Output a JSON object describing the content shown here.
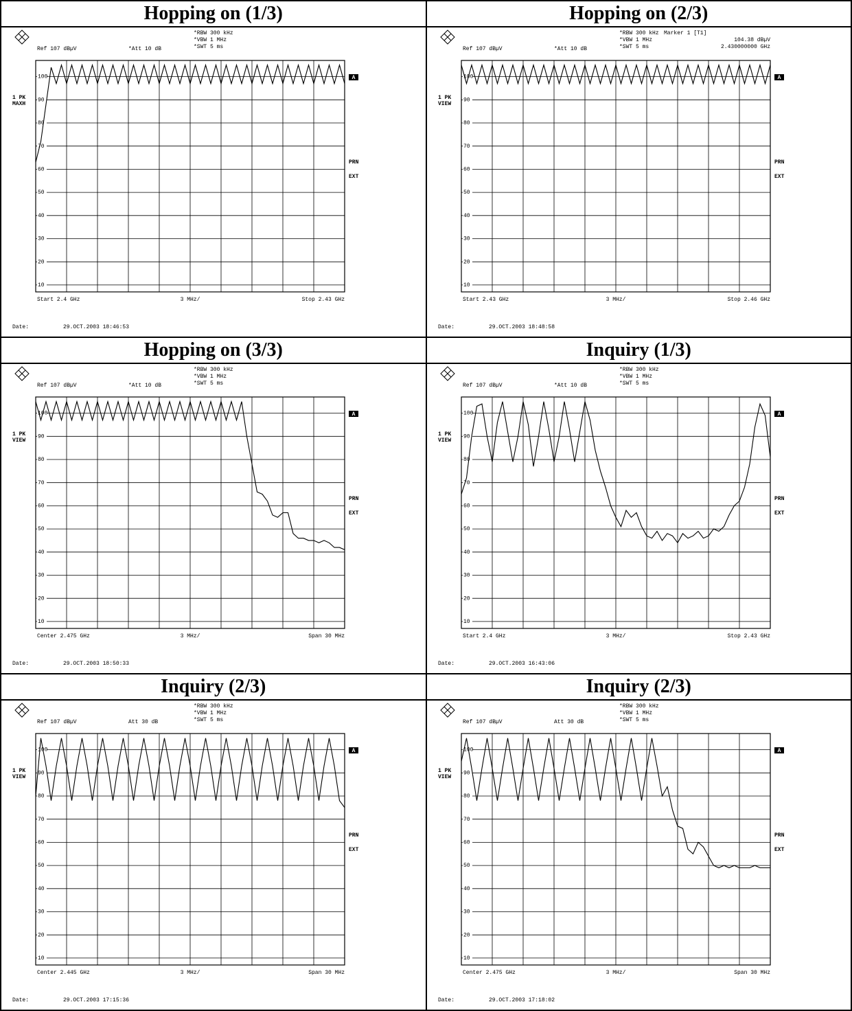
{
  "chart_data": [
    {
      "type": "line",
      "title": "Hopping on (1/3)",
      "rbw": "*RBW 300 kHz",
      "vbw": "*VBW 1 MHz",
      "swt": "*SWT 5 ms",
      "ref": "Ref 107 dBµV",
      "att": "*Att 10 dB",
      "trace_label": [
        "1 PK",
        "MAXH"
      ],
      "side_labels": [
        "A",
        "PRN",
        "EXT"
      ],
      "x_start": "Start 2.4 GHz",
      "x_div": "3 MHz/",
      "x_stop": "Stop 2.43 GHz",
      "date_label": "Date:",
      "date": "29.OCT.2003 18:46:53",
      "xlim": [
        2.4,
        2.43
      ],
      "ylim": [
        7,
        107
      ],
      "yticks": [
        10,
        20,
        30,
        40,
        50,
        60,
        70,
        80,
        90,
        100
      ],
      "color": "#000000",
      "x": [
        2.4,
        2.4005,
        2.401,
        2.4015,
        2.402,
        2.4025,
        2.403,
        2.4035,
        2.404,
        2.4045,
        2.405,
        2.4055,
        2.406,
        2.4065,
        2.407,
        2.4075,
        2.408,
        2.4085,
        2.409,
        2.4095,
        2.41,
        2.4105,
        2.411,
        2.4115,
        2.412,
        2.4125,
        2.413,
        2.4135,
        2.414,
        2.4145,
        2.415,
        2.4155,
        2.416,
        2.4165,
        2.417,
        2.4175,
        2.418,
        2.4185,
        2.419,
        2.4195,
        2.42,
        2.4205,
        2.421,
        2.4215,
        2.422,
        2.4225,
        2.423,
        2.4235,
        2.424,
        2.4245,
        2.425,
        2.4255,
        2.426,
        2.4265,
        2.427,
        2.4275,
        2.428,
        2.4285,
        2.429,
        2.4295,
        2.43
      ],
      "values": [
        63,
        72,
        88,
        104,
        97,
        105,
        97,
        105,
        97,
        105,
        97,
        105,
        97,
        105,
        97,
        105,
        97,
        105,
        97,
        105,
        97,
        105,
        97,
        105,
        97,
        105,
        97,
        105,
        97,
        105,
        97,
        105,
        97,
        105,
        97,
        105,
        97,
        105,
        97,
        105,
        97,
        105,
        97,
        105,
        97,
        105,
        97,
        105,
        97,
        105,
        97,
        105,
        97,
        105,
        97,
        105,
        97,
        105,
        97,
        105,
        97
      ]
    },
    {
      "type": "line",
      "title": "Hopping on (2/3)",
      "rbw": "*RBW 300 kHz",
      "vbw": "*VBW 1 MHz",
      "swt": "*SWT 5 ms",
      "ref": "Ref 107 dBµV",
      "att": "*Att 10 dB",
      "marker": [
        "Marker 1 [T1]",
        "104.38 dBµV",
        "2.430000000 GHz"
      ],
      "trace_label": [
        "1 PK",
        "VIEW"
      ],
      "side_labels": [
        "A",
        "PRN",
        "EXT"
      ],
      "x_start": "Start 2.43 GHz",
      "x_div": "3 MHz/",
      "x_stop": "Stop 2.46 GHz",
      "date_label": "Date:",
      "date": "29.OCT.2003 18:48:58",
      "xlim": [
        2.43,
        2.46
      ],
      "ylim": [
        7,
        107
      ],
      "yticks": [
        10,
        20,
        30,
        40,
        50,
        60,
        70,
        80,
        90,
        100
      ],
      "color": "#000000",
      "x": [
        2.43,
        2.4305,
        2.431,
        2.4315,
        2.432,
        2.4325,
        2.433,
        2.4335,
        2.434,
        2.4345,
        2.435,
        2.4355,
        2.436,
        2.4365,
        2.437,
        2.4375,
        2.438,
        2.4385,
        2.439,
        2.4395,
        2.44,
        2.4405,
        2.441,
        2.4415,
        2.442,
        2.4425,
        2.443,
        2.4435,
        2.444,
        2.4445,
        2.445,
        2.4455,
        2.446,
        2.4465,
        2.447,
        2.4475,
        2.448,
        2.4485,
        2.449,
        2.4495,
        2.45,
        2.4505,
        2.451,
        2.4515,
        2.452,
        2.4525,
        2.453,
        2.4535,
        2.454,
        2.4545,
        2.455,
        2.4555,
        2.456,
        2.4565,
        2.457,
        2.4575,
        2.458,
        2.4585,
        2.459,
        2.4595,
        2.46
      ],
      "values": [
        105,
        97,
        105,
        97,
        105,
        97,
        105,
        97,
        105,
        97,
        105,
        97,
        105,
        97,
        105,
        97,
        105,
        97,
        105,
        97,
        105,
        97,
        105,
        97,
        105,
        97,
        105,
        97,
        105,
        97,
        105,
        97,
        105,
        97,
        105,
        97,
        105,
        97,
        105,
        97,
        105,
        97,
        105,
        97,
        105,
        97,
        105,
        97,
        105,
        97,
        105,
        97,
        105,
        97,
        105,
        97,
        105,
        97,
        105,
        97,
        105
      ]
    },
    {
      "type": "line",
      "title": "Hopping on (3/3)",
      "rbw": "*RBW 300 kHz",
      "vbw": "*VBW 1 MHz",
      "swt": "*SWT 5 ms",
      "ref": "Ref 107 dBµV",
      "att": "*Att 10 dB",
      "trace_label": [
        "1 PK",
        "VIEW"
      ],
      "side_labels": [
        "A",
        "PRN",
        "EXT"
      ],
      "x_start": "Center 2.475 GHz",
      "x_div": "3 MHz/",
      "x_stop": "Span 30 MHz",
      "date_label": "Date:",
      "date": "29.OCT.2003 18:50:33",
      "xlim": [
        2.46,
        2.49
      ],
      "ylim": [
        7,
        107
      ],
      "yticks": [
        10,
        20,
        30,
        40,
        50,
        60,
        70,
        80,
        90,
        100
      ],
      "color": "#000000",
      "x": [
        2.46,
        2.4605,
        2.461,
        2.4615,
        2.462,
        2.4625,
        2.463,
        2.4635,
        2.464,
        2.4645,
        2.465,
        2.4655,
        2.466,
        2.4665,
        2.467,
        2.4675,
        2.468,
        2.4685,
        2.469,
        2.4695,
        2.47,
        2.4705,
        2.471,
        2.4715,
        2.472,
        2.4725,
        2.473,
        2.4735,
        2.474,
        2.4745,
        2.475,
        2.4755,
        2.476,
        2.4765,
        2.477,
        2.4775,
        2.478,
        2.4785,
        2.479,
        2.4795,
        2.48,
        2.4805,
        2.481,
        2.4815,
        2.482,
        2.4825,
        2.483,
        2.4835,
        2.484,
        2.4845,
        2.485,
        2.4855,
        2.486,
        2.4865,
        2.487,
        2.4875,
        2.488,
        2.4885,
        2.489,
        2.4895,
        2.49
      ],
      "values": [
        105,
        97,
        105,
        97,
        105,
        97,
        105,
        97,
        105,
        97,
        105,
        97,
        105,
        97,
        105,
        97,
        105,
        97,
        105,
        97,
        105,
        97,
        105,
        97,
        105,
        97,
        105,
        97,
        105,
        97,
        105,
        97,
        105,
        97,
        105,
        97,
        105,
        97,
        105,
        97,
        105,
        90,
        78,
        66,
        65,
        62,
        56,
        55,
        57,
        57,
        48,
        46,
        46,
        45,
        45,
        44,
        45,
        44,
        42,
        42,
        41
      ]
    },
    {
      "type": "line",
      "title": "Inquiry (1/3)",
      "rbw": "*RBW 300 kHz",
      "vbw": "*VBW 1 MHz",
      "swt": "*SWT 5 ms",
      "ref": "Ref 107 dBµV",
      "att": "*Att 10 dB",
      "trace_label": [
        "1 PK",
        "VIEW"
      ],
      "side_labels": [
        "A",
        "PRN",
        "EXT"
      ],
      "x_start": "Start 2.4 GHz",
      "x_div": "3 MHz/",
      "x_stop": "Stop 2.43 GHz",
      "date_label": "Date:",
      "date": "29.OCT.2003 16:43:06",
      "xlim": [
        2.4,
        2.43
      ],
      "ylim": [
        7,
        107
      ],
      "yticks": [
        10,
        20,
        30,
        40,
        50,
        60,
        70,
        80,
        90,
        100
      ],
      "color": "#000000",
      "x": [
        2.4,
        2.4005,
        2.401,
        2.4015,
        2.402,
        2.4025,
        2.403,
        2.4035,
        2.404,
        2.4045,
        2.405,
        2.4055,
        2.406,
        2.4065,
        2.407,
        2.4075,
        2.408,
        2.4085,
        2.409,
        2.4095,
        2.41,
        2.4105,
        2.411,
        2.4115,
        2.412,
        2.4125,
        2.413,
        2.4135,
        2.414,
        2.4145,
        2.415,
        2.4155,
        2.416,
        2.4165,
        2.417,
        2.4175,
        2.418,
        2.4185,
        2.419,
        2.4195,
        2.42,
        2.4205,
        2.421,
        2.4215,
        2.422,
        2.4225,
        2.423,
        2.4235,
        2.424,
        2.4245,
        2.425,
        2.4255,
        2.426,
        2.4265,
        2.427,
        2.4275,
        2.428,
        2.4285,
        2.429,
        2.4295,
        2.43
      ],
      "values": [
        65,
        72,
        90,
        103,
        104,
        90,
        79,
        96,
        105,
        92,
        79,
        90,
        105,
        95,
        77,
        90,
        105,
        93,
        79,
        90,
        105,
        93,
        79,
        92,
        105,
        97,
        84,
        75,
        68,
        60,
        55,
        51,
        58,
        55,
        57,
        51,
        47,
        46,
        49,
        45,
        48,
        47,
        44,
        48,
        46,
        47,
        49,
        46,
        47,
        50,
        49,
        51,
        56,
        60,
        62,
        68,
        78,
        94,
        104,
        99,
        81
      ]
    },
    {
      "type": "line",
      "title": "Inquiry (2/3)",
      "rbw": "*RBW 300 kHz",
      "vbw": "*VBW 1 MHz",
      "swt": "*SWT 5 ms",
      "ref": "Ref 107 dBµV",
      "att": "Att 30 dB",
      "trace_label": [
        "1 PK",
        "VIEW"
      ],
      "side_labels": [
        "A",
        "PRN",
        "EXT"
      ],
      "x_start": "Center 2.445 GHz",
      "x_div": "3 MHz/",
      "x_stop": "Span 30 MHz",
      "date_label": "Date:",
      "date": "29.OCT.2003 17:15:36",
      "xlim": [
        2.43,
        2.46
      ],
      "ylim": [
        7,
        107
      ],
      "yticks": [
        10,
        20,
        30,
        40,
        50,
        60,
        70,
        80,
        90,
        100
      ],
      "color": "#000000",
      "x": [
        2.43,
        2.4305,
        2.431,
        2.4315,
        2.432,
        2.4325,
        2.433,
        2.4335,
        2.434,
        2.4345,
        2.435,
        2.4355,
        2.436,
        2.4365,
        2.437,
        2.4375,
        2.438,
        2.4385,
        2.439,
        2.4395,
        2.44,
        2.4405,
        2.441,
        2.4415,
        2.442,
        2.4425,
        2.443,
        2.4435,
        2.444,
        2.4445,
        2.445,
        2.4455,
        2.446,
        2.4465,
        2.447,
        2.4475,
        2.448,
        2.4485,
        2.449,
        2.4495,
        2.45,
        2.4505,
        2.451,
        2.4515,
        2.452,
        2.4525,
        2.453,
        2.4535,
        2.454,
        2.4545,
        2.455,
        2.4555,
        2.456,
        2.4565,
        2.457,
        2.4575,
        2.458,
        2.4585,
        2.459,
        2.4595,
        2.46
      ],
      "values": [
        80,
        105,
        93,
        78,
        93,
        105,
        93,
        78,
        93,
        105,
        93,
        78,
        93,
        105,
        93,
        78,
        93,
        105,
        93,
        78,
        93,
        105,
        93,
        78,
        93,
        105,
        93,
        78,
        93,
        105,
        93,
        78,
        93,
        105,
        93,
        78,
        93,
        105,
        93,
        78,
        93,
        105,
        93,
        78,
        93,
        105,
        93,
        78,
        93,
        105,
        93,
        78,
        93,
        105,
        93,
        78,
        93,
        105,
        93,
        78,
        75
      ]
    },
    {
      "type": "line",
      "title": "Inquiry (2/3)",
      "rbw": "*RBW 300 kHz",
      "vbw": "*VBW 1 MHz",
      "swt": "*SWT 5 ms",
      "ref": "Ref 107 dBµV",
      "att": "Att 30 dB",
      "trace_label": [
        "1 PK",
        "VIEW"
      ],
      "side_labels": [
        "A",
        "PRN",
        "EXT"
      ],
      "x_start": "Center 2.475 GHz",
      "x_div": "3 MHz/",
      "x_stop": "Span 30 MHz",
      "date_label": "Date:",
      "date": "29.OCT.2003 17:18:02",
      "xlim": [
        2.46,
        2.49
      ],
      "ylim": [
        7,
        107
      ],
      "yticks": [
        10,
        20,
        30,
        40,
        50,
        60,
        70,
        80,
        90,
        100
      ],
      "color": "#000000",
      "x": [
        2.46,
        2.4605,
        2.461,
        2.4615,
        2.462,
        2.4625,
        2.463,
        2.4635,
        2.464,
        2.4645,
        2.465,
        2.4655,
        2.466,
        2.4665,
        2.467,
        2.4675,
        2.468,
        2.4685,
        2.469,
        2.4695,
        2.47,
        2.4705,
        2.471,
        2.4715,
        2.472,
        2.4725,
        2.473,
        2.4735,
        2.474,
        2.4745,
        2.475,
        2.4755,
        2.476,
        2.4765,
        2.477,
        2.4775,
        2.478,
        2.4785,
        2.479,
        2.4795,
        2.48,
        2.4805,
        2.481,
        2.4815,
        2.482,
        2.4825,
        2.483,
        2.4835,
        2.484,
        2.4845,
        2.485,
        2.4855,
        2.486,
        2.4865,
        2.487,
        2.4875,
        2.488,
        2.4885,
        2.489,
        2.4895,
        2.49
      ],
      "values": [
        95,
        105,
        92,
        78,
        92,
        105,
        92,
        78,
        92,
        105,
        92,
        78,
        92,
        105,
        92,
        78,
        92,
        105,
        92,
        78,
        92,
        105,
        92,
        78,
        92,
        105,
        92,
        78,
        92,
        105,
        92,
        78,
        92,
        105,
        92,
        78,
        92,
        105,
        93,
        80,
        84,
        74,
        67,
        66,
        57,
        55,
        60,
        58,
        54,
        50,
        49,
        50,
        49,
        50,
        49,
        49,
        49,
        50,
        49,
        49,
        49
      ]
    }
  ]
}
